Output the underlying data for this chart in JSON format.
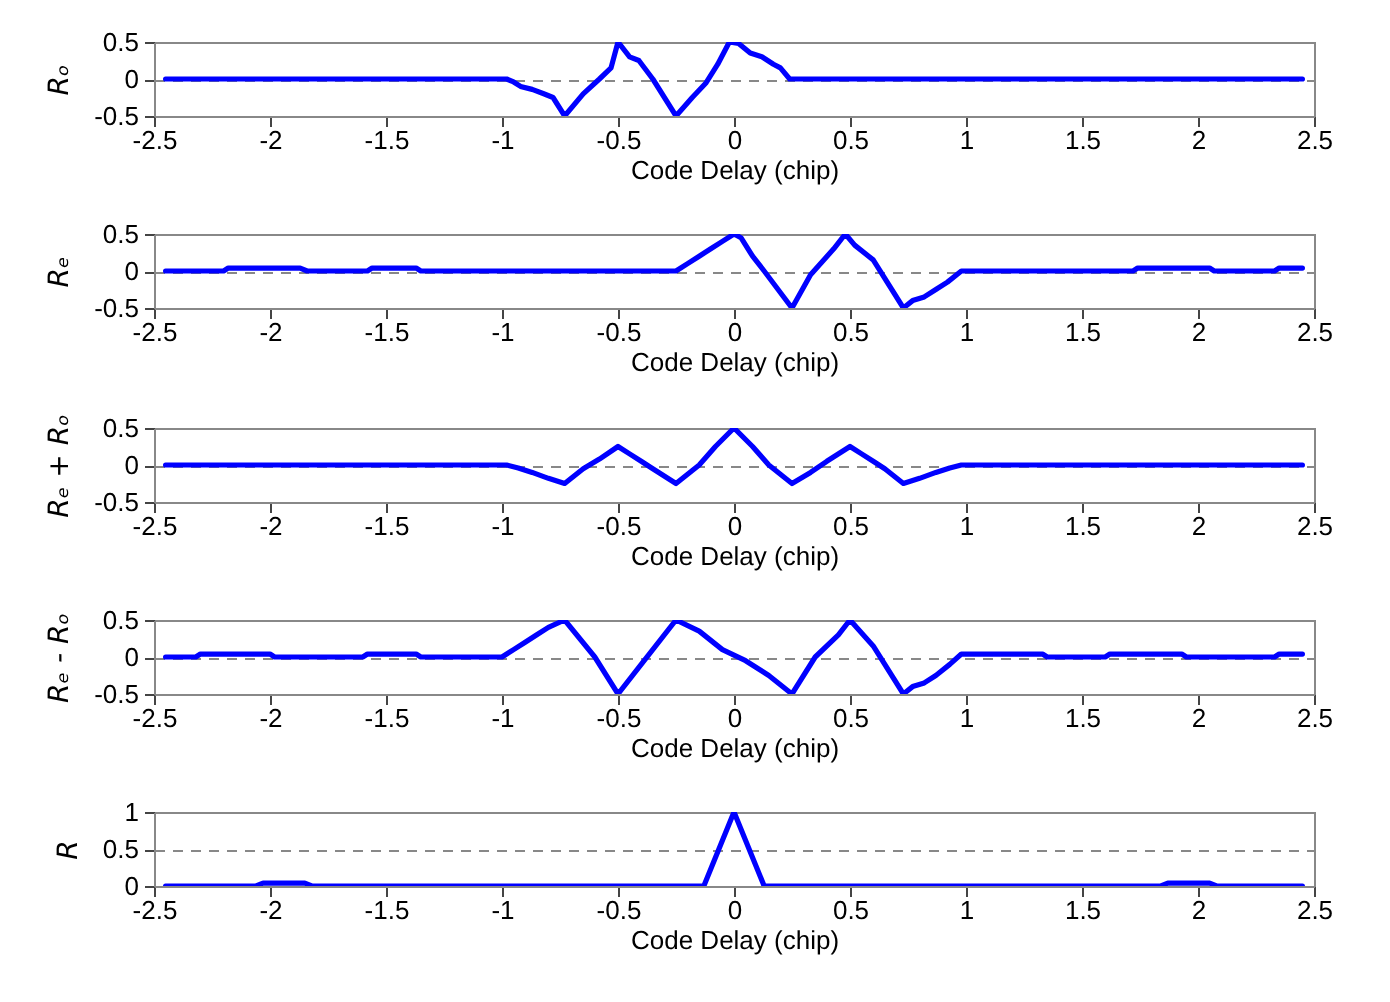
{
  "chart_data": [
    {
      "type": "line",
      "xlabel": "Code Delay (chip)",
      "ylabel": "Rₒ",
      "xlim": [
        -2.5,
        2.5
      ],
      "xticks": [
        -2.5,
        -2,
        -1.5,
        -1,
        -0.5,
        0,
        0.5,
        1,
        1.5,
        2,
        2.5
      ],
      "ylim": [
        -0.5,
        0.5
      ],
      "yticks": [
        -0.5,
        0,
        0.5
      ],
      "grid": "y",
      "color": "#0000ff",
      "x": [
        -2.45,
        -0.98,
        -0.95,
        -0.92,
        -0.87,
        -0.82,
        -0.78,
        -0.73,
        -0.65,
        -0.58,
        -0.53,
        -0.5,
        -0.45,
        -0.41,
        -0.35,
        -0.25,
        -0.18,
        -0.12,
        -0.07,
        -0.02,
        0.02,
        0.07,
        0.12,
        0.17,
        0.2,
        0.24,
        2.45
      ],
      "values": [
        0,
        0,
        -0.04,
        -0.1,
        -0.14,
        -0.2,
        -0.25,
        -0.5,
        -0.2,
        0,
        0.15,
        0.5,
        0.3,
        0.25,
        0,
        -0.5,
        -0.25,
        -0.05,
        0.2,
        0.5,
        0.48,
        0.35,
        0.3,
        0.2,
        0.15,
        0,
        0
      ]
    },
    {
      "type": "line",
      "xlabel": "Code Delay (chip)",
      "ylabel": "Rₑ",
      "xlim": [
        -2.5,
        2.5
      ],
      "xticks": [
        -2.5,
        -2,
        -1.5,
        -1,
        -0.5,
        0,
        0.5,
        1,
        1.5,
        2,
        2.5
      ],
      "ylim": [
        -0.5,
        0.5
      ],
      "yticks": [
        -0.5,
        0,
        0.5
      ],
      "grid": "y",
      "color": "#0000ff",
      "x": [
        -2.45,
        -2.2,
        -2.18,
        -1.87,
        -1.84,
        -1.58,
        -1.56,
        -1.37,
        -1.35,
        -0.25,
        -0.2,
        -0.15,
        -0.1,
        -0.05,
        0,
        0.03,
        0.08,
        0.13,
        0.25,
        0.33,
        0.43,
        0.48,
        0.52,
        0.6,
        0.73,
        0.77,
        0.82,
        0.87,
        0.92,
        0.98,
        1.72,
        1.74,
        2.05,
        2.07,
        2.33,
        2.35,
        2.45
      ],
      "values": [
        0,
        0,
        0.04,
        0.04,
        0,
        0,
        0.04,
        0.04,
        0,
        0,
        0.1,
        0.2,
        0.3,
        0.4,
        0.5,
        0.45,
        0.2,
        0,
        -0.5,
        -0.05,
        0.3,
        0.5,
        0.35,
        0.15,
        -0.5,
        -0.4,
        -0.35,
        -0.25,
        -0.15,
        0,
        0,
        0.04,
        0.04,
        0,
        0,
        0.04,
        0.04
      ]
    },
    {
      "type": "line",
      "xlabel": "Code Delay (chip)",
      "ylabel": "Rₑ + Rₒ",
      "xlim": [
        -2.5,
        2.5
      ],
      "xticks": [
        -2.5,
        -2,
        -1.5,
        -1,
        -0.5,
        0,
        0.5,
        1,
        1.5,
        2,
        2.5
      ],
      "ylim": [
        -0.5,
        0.5
      ],
      "yticks": [
        -0.5,
        0,
        0.5
      ],
      "grid": "y",
      "color": "#0000ff",
      "x": [
        -2.45,
        -0.98,
        -0.93,
        -0.87,
        -0.8,
        -0.73,
        -0.65,
        -0.58,
        -0.5,
        -0.45,
        -0.4,
        -0.35,
        -0.25,
        -0.15,
        -0.08,
        0,
        0.08,
        0.15,
        0.25,
        0.33,
        0.4,
        0.5,
        0.55,
        0.6,
        0.65,
        0.73,
        0.8,
        0.87,
        0.93,
        0.98,
        2.45
      ],
      "values": [
        0,
        0,
        -0.04,
        -0.1,
        -0.18,
        -0.25,
        -0.05,
        0.08,
        0.25,
        0.15,
        0.05,
        -0.05,
        -0.25,
        0,
        0.25,
        0.5,
        0.25,
        0,
        -0.25,
        -0.1,
        0.05,
        0.25,
        0.15,
        0.05,
        -0.05,
        -0.25,
        -0.18,
        -0.1,
        -0.04,
        0,
        0
      ]
    },
    {
      "type": "line",
      "xlabel": "Code Delay (chip)",
      "ylabel": "Rₑ - Rₒ",
      "xlim": [
        -2.5,
        2.5
      ],
      "xticks": [
        -2.5,
        -2,
        -1.5,
        -1,
        -0.5,
        0,
        0.5,
        1,
        1.5,
        2,
        2.5
      ],
      "ylim": [
        -0.5,
        0.5
      ],
      "yticks": [
        -0.5,
        0,
        0.5
      ],
      "grid": "y",
      "color": "#0000ff",
      "x": [
        -2.45,
        -2.32,
        -2.3,
        -2,
        -1.98,
        -1.6,
        -1.58,
        -1.37,
        -1.35,
        -1,
        -0.95,
        -0.9,
        -0.85,
        -0.8,
        -0.73,
        -0.6,
        -0.5,
        -0.4,
        -0.25,
        -0.15,
        -0.05,
        0.05,
        0.15,
        0.25,
        0.35,
        0.45,
        0.5,
        0.6,
        0.73,
        0.77,
        0.82,
        0.87,
        0.93,
        0.98,
        1.33,
        1.35,
        1.6,
        1.62,
        1.93,
        1.95,
        2.33,
        2.35,
        2.45
      ],
      "values": [
        0,
        0,
        0.04,
        0.04,
        0,
        0,
        0.04,
        0.04,
        0,
        0,
        0.1,
        0.2,
        0.3,
        0.4,
        0.5,
        0,
        -0.5,
        -0.1,
        0.5,
        0.35,
        0.1,
        -0.05,
        -0.25,
        -0.5,
        0,
        0.3,
        0.5,
        0.15,
        -0.5,
        -0.4,
        -0.35,
        -0.25,
        -0.1,
        0.04,
        0.04,
        0,
        0,
        0.04,
        0.04,
        0,
        0,
        0.04,
        0.04
      ]
    },
    {
      "type": "line",
      "xlabel": "Code Delay (chip)",
      "ylabel": "R",
      "xlim": [
        -2.5,
        2.5
      ],
      "xticks": [
        -2.5,
        -2,
        -1.5,
        -1,
        -0.5,
        0,
        0.5,
        1,
        1.5,
        2,
        2.5
      ],
      "ylim": [
        0,
        1
      ],
      "yticks": [
        0,
        0.5,
        1
      ],
      "grid": "y",
      "color": "#0000ff",
      "x": [
        -2.45,
        -2.06,
        -2.03,
        -1.85,
        -1.82,
        -0.13,
        0,
        0.13,
        1.84,
        1.87,
        2.05,
        2.08,
        2.45
      ],
      "values": [
        0,
        0,
        0.04,
        0.04,
        0,
        0,
        1,
        0,
        0,
        0.04,
        0.04,
        0,
        0
      ]
    }
  ]
}
